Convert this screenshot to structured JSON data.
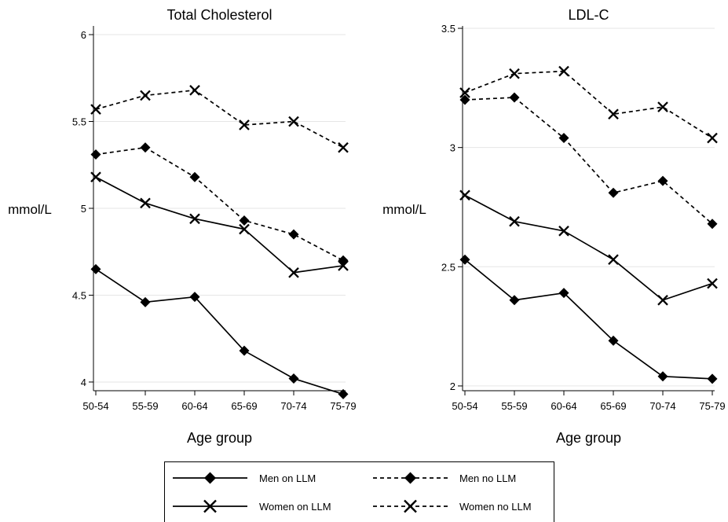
{
  "legend": {
    "position": "bottom",
    "entries": [
      {
        "label": "Men on LLM",
        "line": "solid",
        "marker": "diamond"
      },
      {
        "label": "Men no LLM",
        "line": "dashed",
        "marker": "diamond"
      },
      {
        "label": "Women on LLM",
        "line": "solid",
        "marker": "x"
      },
      {
        "label": "Women no LLM",
        "line": "dashed",
        "marker": "x"
      }
    ]
  },
  "chart_data": [
    {
      "type": "line",
      "title": "Total Cholesterol",
      "xlabel": "Age group",
      "ylabel": "mmol/L",
      "categories": [
        "50-54",
        "55-59",
        "60-64",
        "65-69",
        "70-74",
        "75-79"
      ],
      "ylim": [
        3.95,
        6.05
      ],
      "yticks": [
        4,
        4.5,
        5,
        5.5,
        6
      ],
      "ytick_labels": [
        "4",
        "4.5",
        "5",
        "5.5",
        "6"
      ],
      "grid": true,
      "series": [
        {
          "name": "Men on LLM",
          "line": "solid",
          "marker": "diamond",
          "values": [
            4.65,
            4.46,
            4.49,
            4.18,
            4.02,
            3.93
          ]
        },
        {
          "name": "Men no LLM",
          "line": "dashed",
          "marker": "diamond",
          "values": [
            5.31,
            5.35,
            5.18,
            4.93,
            4.85,
            4.7
          ]
        },
        {
          "name": "Women on LLM",
          "line": "solid",
          "marker": "x",
          "values": [
            5.18,
            5.03,
            4.94,
            4.88,
            4.63,
            4.67
          ]
        },
        {
          "name": "Women no LLM",
          "line": "dashed",
          "marker": "x",
          "values": [
            5.57,
            5.65,
            5.68,
            5.48,
            5.5,
            5.35
          ]
        }
      ]
    },
    {
      "type": "line",
      "title": "LDL-C",
      "xlabel": "Age group",
      "ylabel": "mmol/L",
      "categories": [
        "50-54",
        "55-59",
        "60-64",
        "65-69",
        "70-74",
        "75-79"
      ],
      "ylim": [
        1.98,
        3.51
      ],
      "yticks": [
        2,
        2.5,
        3,
        3.5
      ],
      "ytick_labels": [
        "2",
        "2.5",
        "3",
        "3.5"
      ],
      "grid": true,
      "series": [
        {
          "name": "Men on LLM",
          "line": "solid",
          "marker": "diamond",
          "values": [
            2.53,
            2.36,
            2.39,
            2.19,
            2.04,
            2.03
          ]
        },
        {
          "name": "Men no LLM",
          "line": "dashed",
          "marker": "diamond",
          "values": [
            3.2,
            3.21,
            3.04,
            2.81,
            2.86,
            2.68
          ]
        },
        {
          "name": "Women on LLM",
          "line": "solid",
          "marker": "x",
          "values": [
            2.8,
            2.69,
            2.65,
            2.53,
            2.36,
            2.43
          ]
        },
        {
          "name": "Women no LLM",
          "line": "dashed",
          "marker": "x",
          "values": [
            3.23,
            3.31,
            3.32,
            3.14,
            3.17,
            3.04
          ]
        }
      ]
    }
  ]
}
